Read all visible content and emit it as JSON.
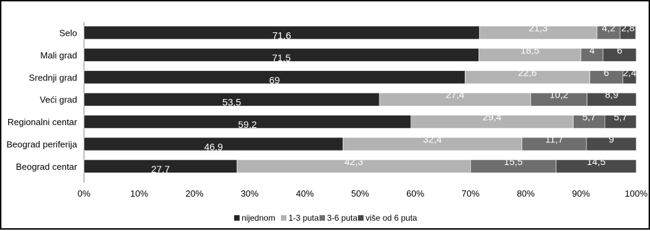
{
  "chart_data": {
    "type": "bar",
    "orientation": "horizontal",
    "stacked": "percent",
    "categories": [
      "Selo",
      "Mali grad",
      "Srednji grad",
      "Veći grad",
      "Regionalni centar",
      "Beograd periferija",
      "Beograd centar"
    ],
    "series": [
      {
        "name": "nijednom",
        "values": [
          71.6,
          71.5,
          69,
          53.5,
          59.2,
          46.9,
          27.7
        ]
      },
      {
        "name": "1-3 puta",
        "values": [
          21.3,
          18.5,
          22.6,
          27.4,
          29.4,
          32.4,
          42.3
        ]
      },
      {
        "name": "3-6 puta",
        "values": [
          4.2,
          4,
          6,
          10.2,
          5.7,
          11.7,
          15.5
        ]
      },
      {
        "name": "više od 6 puta",
        "values": [
          2.8,
          6,
          2.4,
          8.9,
          5.7,
          9,
          14.5
        ]
      }
    ],
    "value_labels": [
      [
        "71,6",
        "21,3",
        "4,2",
        "2,8"
      ],
      [
        "71,5",
        "18,5",
        "4",
        "6"
      ],
      [
        "69",
        "22,6",
        "6",
        "2,4"
      ],
      [
        "53,5",
        "27,4",
        "10,2",
        "8,9"
      ],
      [
        "59,2",
        "29,4",
        "5,7",
        "5,7"
      ],
      [
        "46,9",
        "32,4",
        "11,7",
        "9"
      ],
      [
        "27,7",
        "42,3",
        "15,5",
        "14,5"
      ]
    ],
    "x_ticks": [
      "0%",
      "10%",
      "20%",
      "30%",
      "40%",
      "50%",
      "60%",
      "70%",
      "80%",
      "90%",
      "100%"
    ],
    "xlim": [
      0,
      100
    ],
    "colors": [
      "#262626",
      "#b3b3b3",
      "#6e6e6e",
      "#4a4a4a"
    ],
    "legend_position": "bottom",
    "grid": false
  }
}
